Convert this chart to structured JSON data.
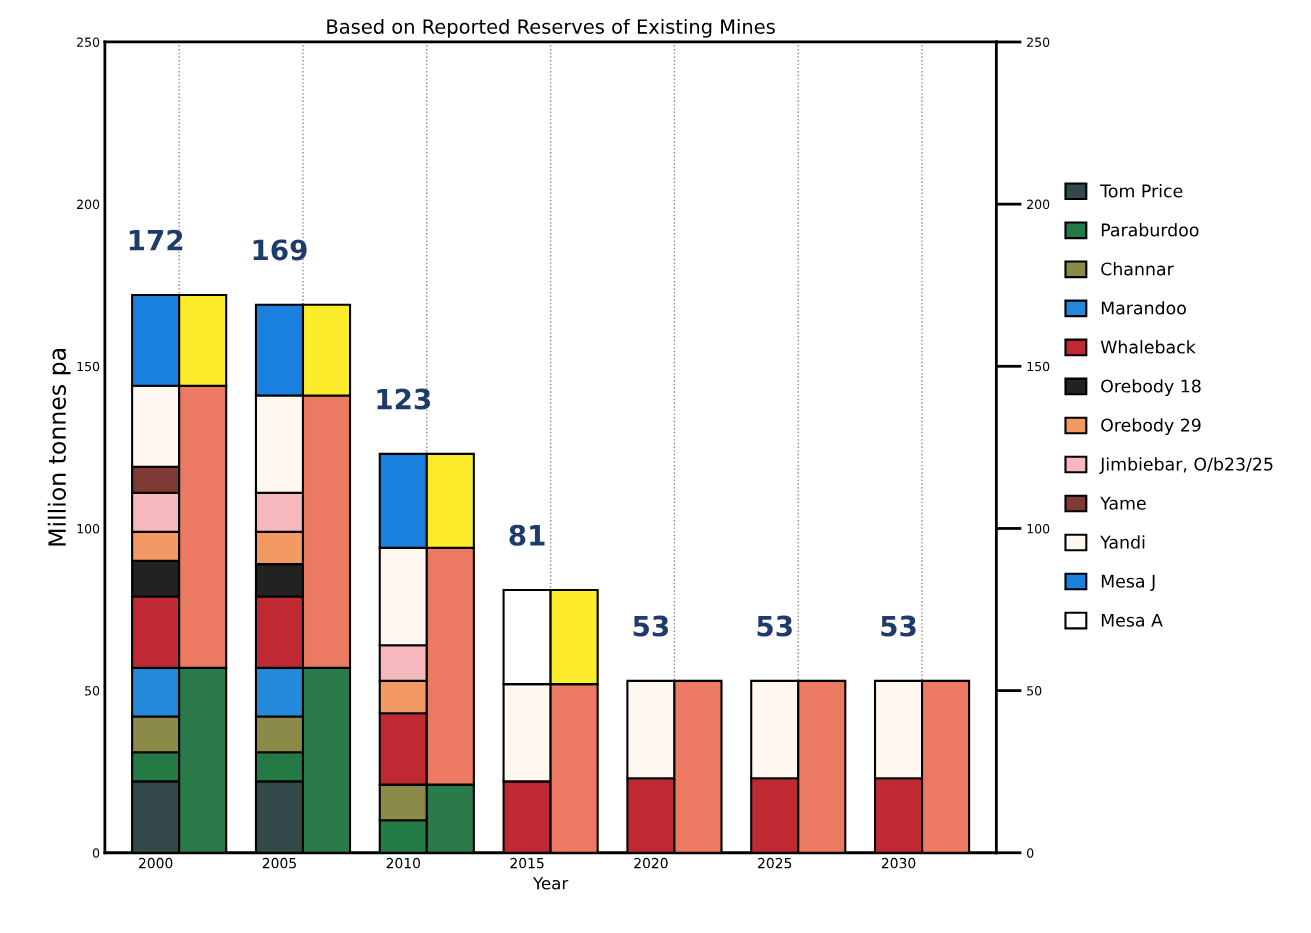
{
  "chart_data": {
    "type": "bar",
    "stacked": true,
    "title": "Based on Reported Reserves of Existing Mines",
    "xlabel": "Year",
    "ylabel": "Million tonnes pa",
    "categories": [
      "2000",
      null,
      "2005",
      null,
      "2010",
      null,
      "2015",
      null,
      "2020",
      null,
      "2025",
      null,
      "2030",
      null
    ],
    "ylim": [
      0,
      250
    ],
    "yticks": [
      0,
      50,
      100,
      150,
      200,
      250
    ],
    "y2lim": [
      0,
      250
    ],
    "y2ticks": [
      0,
      50,
      100,
      150,
      200,
      250
    ],
    "grid": "x",
    "legend": "right",
    "totals": [
      "172",
      null,
      "169",
      null,
      "123",
      null,
      "81",
      null,
      "53",
      null,
      "53",
      null,
      "53",
      null
    ],
    "series": [
      {
        "name": "Tom Price",
        "color": "#33494a",
        "values": [
          22,
          null,
          22,
          null,
          null,
          null,
          null,
          null,
          null,
          null,
          null,
          null,
          null,
          null
        ]
      },
      {
        "name": "Paraburdoo",
        "color": "#237a45",
        "values": [
          9,
          null,
          9,
          null,
          10,
          null,
          null,
          null,
          null,
          null,
          null,
          null,
          null,
          null
        ]
      },
      {
        "name": "Channar",
        "color": "#8c8a48",
        "values": [
          11,
          null,
          11,
          null,
          11,
          null,
          null,
          null,
          null,
          null,
          null,
          null,
          null,
          null
        ]
      },
      {
        "name": "Marandoo",
        "color": "#2389d8",
        "values": [
          15,
          null,
          15,
          null,
          null,
          null,
          null,
          null,
          null,
          null,
          null,
          null,
          null,
          null
        ]
      },
      {
        "name": "Whaleback",
        "color": "#bf2a32",
        "values": [
          22,
          null,
          22,
          null,
          22,
          null,
          22,
          null,
          23,
          null,
          23,
          null,
          23,
          null
        ]
      },
      {
        "name": "Orebody 18",
        "color": "#222222",
        "values": [
          11,
          null,
          10,
          null,
          null,
          null,
          null,
          null,
          null,
          null,
          null,
          null,
          null,
          null
        ]
      },
      {
        "name": "Orebody 29",
        "color": "#f39a64",
        "values": [
          9,
          null,
          10,
          null,
          10,
          null,
          null,
          null,
          null,
          null,
          null,
          null,
          null,
          null
        ]
      },
      {
        "name": "Jimbiebar, O/b23/25",
        "color": "#f6b8bc",
        "values": [
          12,
          null,
          12,
          null,
          11,
          null,
          null,
          null,
          null,
          null,
          null,
          null,
          null,
          null
        ]
      },
      {
        "name": "Yame",
        "color": "#7f3a36",
        "values": [
          8,
          null,
          null,
          null,
          null,
          null,
          null,
          null,
          null,
          null,
          null,
          null,
          null,
          null
        ]
      },
      {
        "name": "Yandi",
        "color": "#fff8f0",
        "values": [
          25,
          null,
          30,
          null,
          30,
          null,
          30,
          null,
          30,
          null,
          30,
          null,
          30,
          null
        ]
      },
      {
        "name": "Mesa J",
        "color": "#1a80e0",
        "values": [
          28,
          null,
          28,
          null,
          29,
          null,
          null,
          null,
          null,
          null,
          null,
          null,
          null,
          null
        ]
      },
      {
        "name": "Mesa A",
        "color": "#ffffff",
        "values": [
          null,
          null,
          null,
          null,
          null,
          null,
          29,
          null,
          null,
          null,
          null,
          null,
          null,
          null
        ]
      },
      {
        "color": "#2a7a4a",
        "values": [
          null,
          57,
          null,
          57,
          null,
          21,
          null,
          null,
          null,
          null,
          null,
          null,
          null,
          null
        ]
      },
      {
        "color": "#ec7a62",
        "values": [
          null,
          87,
          null,
          84,
          null,
          73,
          null,
          52,
          null,
          53,
          null,
          53,
          null,
          53
        ]
      },
      {
        "color": "#fcec2c",
        "values": [
          null,
          28,
          null,
          28,
          null,
          29,
          null,
          29,
          null,
          null,
          null,
          null,
          null,
          null
        ]
      }
    ]
  }
}
